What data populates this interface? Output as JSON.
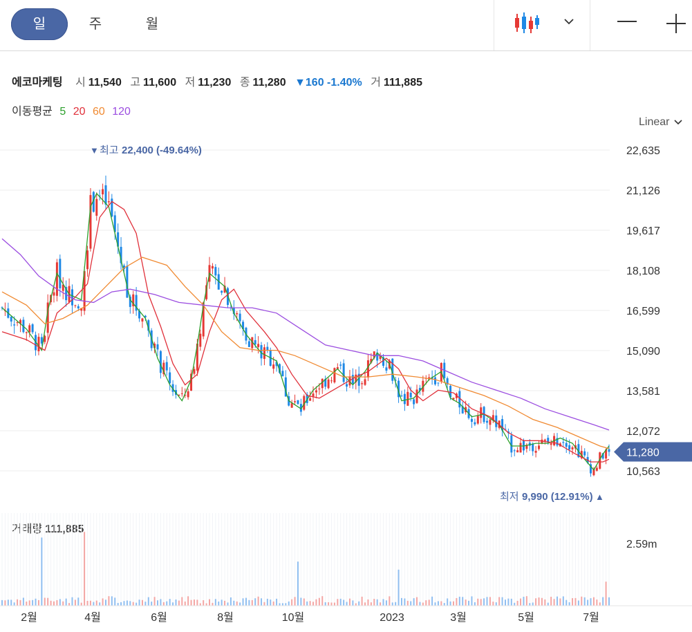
{
  "toolbar": {
    "periods": [
      "일",
      "주",
      "월"
    ],
    "active_period": "일",
    "chart_type_icon": "candlestick-icon",
    "dropdown_icon": "chevron-down-icon",
    "zoom_out_icon": "minus-icon",
    "zoom_in_icon": "plus-icon"
  },
  "quote": {
    "name": "에코마케팅",
    "open_label": "시",
    "open": "11,540",
    "high_label": "고",
    "high": "11,600",
    "low_label": "저",
    "low": "11,230",
    "close_label": "종",
    "close": "11,280",
    "change": "▼160 -1.40%",
    "volume_label": "거",
    "volume": "111,885"
  },
  "ma": {
    "label": "이동평균",
    "periods": [
      {
        "n": "5",
        "color": "#2ca02c"
      },
      {
        "n": "20",
        "color": "#e0303a"
      },
      {
        "n": "60",
        "color": "#f08a32"
      },
      {
        "n": "120",
        "color": "#9b4de0"
      }
    ]
  },
  "scale_mode": "Linear",
  "volume_panel": {
    "label": "거래량",
    "value": "111,885",
    "axis_max": "2.59m"
  },
  "colors": {
    "up": "#e53935",
    "down": "#1e88e5",
    "accent": "#4a67a5"
  },
  "chart_data": {
    "type": "candlestick",
    "x_ticks": [
      "2월",
      "4월",
      "6월",
      "8월",
      "10월",
      "2023",
      "3월",
      "5월",
      "7월"
    ],
    "y_ticks": [
      "22,635",
      "21,126",
      "19,617",
      "18,108",
      "16,599",
      "15,090",
      "13,581",
      "12,072",
      "10,563"
    ],
    "y_tick_values": [
      22635,
      21126,
      19617,
      18108,
      16599,
      15090,
      13581,
      12072,
      10563
    ],
    "current_price_label": "11,280",
    "current_price": 11280,
    "max_marker": {
      "label": "최고",
      "value": "22,400 (-49.64%)"
    },
    "min_marker": {
      "label": "최저",
      "value": "9,990 (12.91%)"
    },
    "ma_series": [
      {
        "name": "5",
        "color": "#2ca02c",
        "points": [
          [
            0,
            16700
          ],
          [
            8,
            15900
          ],
          [
            13,
            15100
          ],
          [
            15,
            16600
          ],
          [
            18,
            18000
          ],
          [
            22,
            17200
          ],
          [
            26,
            17000
          ],
          [
            29,
            20500
          ],
          [
            31,
            21000
          ],
          [
            35,
            20500
          ],
          [
            39,
            18500
          ],
          [
            42,
            17000
          ],
          [
            47,
            16300
          ],
          [
            51,
            14800
          ],
          [
            55,
            13800
          ],
          [
            59,
            13200
          ],
          [
            62,
            14000
          ],
          [
            64,
            15300
          ],
          [
            66,
            16800
          ],
          [
            68,
            18000
          ],
          [
            71,
            17700
          ],
          [
            73,
            17500
          ],
          [
            76,
            16500
          ],
          [
            80,
            15700
          ],
          [
            85,
            15000
          ],
          [
            90,
            14700
          ],
          [
            94,
            13200
          ],
          [
            98,
            12900
          ],
          [
            102,
            13600
          ],
          [
            106,
            14000
          ],
          [
            110,
            14400
          ],
          [
            115,
            13800
          ],
          [
            119,
            14300
          ],
          [
            123,
            15000
          ],
          [
            127,
            14600
          ],
          [
            131,
            13200
          ],
          [
            135,
            13300
          ],
          [
            140,
            14000
          ],
          [
            144,
            14300
          ],
          [
            147,
            13300
          ],
          [
            150,
            13100
          ],
          [
            154,
            12600
          ],
          [
            158,
            12700
          ],
          [
            163,
            12300
          ],
          [
            167,
            11500
          ],
          [
            171,
            11500
          ],
          [
            175,
            11600
          ],
          [
            179,
            11600
          ],
          [
            183,
            11800
          ],
          [
            187,
            11600
          ],
          [
            191,
            11000
          ],
          [
            194,
            10600
          ],
          [
            197,
            11200
          ],
          [
            199,
            11500
          ]
        ]
      },
      {
        "name": "20",
        "color": "#e0303a",
        "points": [
          [
            0,
            15800
          ],
          [
            8,
            15500
          ],
          [
            14,
            15100
          ],
          [
            18,
            16500
          ],
          [
            24,
            17100
          ],
          [
            28,
            17600
          ],
          [
            32,
            20100
          ],
          [
            36,
            20700
          ],
          [
            40,
            20400
          ],
          [
            44,
            19500
          ],
          [
            48,
            17200
          ],
          [
            52,
            16000
          ],
          [
            56,
            14600
          ],
          [
            60,
            13800
          ],
          [
            64,
            14200
          ],
          [
            68,
            15800
          ],
          [
            72,
            17000
          ],
          [
            76,
            17400
          ],
          [
            80,
            16600
          ],
          [
            86,
            15800
          ],
          [
            90,
            15200
          ],
          [
            95,
            14200
          ],
          [
            100,
            13400
          ],
          [
            104,
            13300
          ],
          [
            110,
            13700
          ],
          [
            116,
            14100
          ],
          [
            120,
            14300
          ],
          [
            126,
            14800
          ],
          [
            130,
            14400
          ],
          [
            134,
            13600
          ],
          [
            138,
            13200
          ],
          [
            143,
            13600
          ],
          [
            148,
            13500
          ],
          [
            154,
            12900
          ],
          [
            160,
            12600
          ],
          [
            166,
            12000
          ],
          [
            171,
            11700
          ],
          [
            176,
            11700
          ],
          [
            182,
            11600
          ],
          [
            188,
            11200
          ],
          [
            193,
            10900
          ],
          [
            197,
            10900
          ],
          [
            199,
            11000
          ]
        ]
      },
      {
        "name": "60",
        "color": "#f08a32",
        "points": [
          [
            0,
            17300
          ],
          [
            8,
            16800
          ],
          [
            14,
            16100
          ],
          [
            20,
            16300
          ],
          [
            28,
            16800
          ],
          [
            34,
            17500
          ],
          [
            40,
            18200
          ],
          [
            46,
            18600
          ],
          [
            54,
            18300
          ],
          [
            60,
            17500
          ],
          [
            66,
            16800
          ],
          [
            72,
            15800
          ],
          [
            78,
            15200
          ],
          [
            84,
            15100
          ],
          [
            90,
            15100
          ],
          [
            96,
            14900
          ],
          [
            104,
            14500
          ],
          [
            112,
            14100
          ],
          [
            120,
            14100
          ],
          [
            128,
            14200
          ],
          [
            136,
            14100
          ],
          [
            142,
            14000
          ],
          [
            150,
            13700
          ],
          [
            158,
            13400
          ],
          [
            166,
            13000
          ],
          [
            174,
            12500
          ],
          [
            182,
            12200
          ],
          [
            190,
            11800
          ],
          [
            196,
            11500
          ],
          [
            199,
            11400
          ]
        ]
      },
      {
        "name": "120",
        "color": "#9b4de0",
        "points": [
          [
            0,
            19300
          ],
          [
            6,
            18700
          ],
          [
            12,
            17900
          ],
          [
            18,
            17400
          ],
          [
            24,
            17000
          ],
          [
            30,
            16900
          ],
          [
            36,
            17300
          ],
          [
            42,
            17400
          ],
          [
            50,
            17200
          ],
          [
            58,
            16900
          ],
          [
            66,
            16800
          ],
          [
            74,
            16700
          ],
          [
            82,
            16700
          ],
          [
            90,
            16500
          ],
          [
            98,
            15900
          ],
          [
            106,
            15300
          ],
          [
            114,
            15100
          ],
          [
            122,
            14900
          ],
          [
            130,
            14900
          ],
          [
            138,
            14700
          ],
          [
            146,
            14300
          ],
          [
            154,
            13900
          ],
          [
            162,
            13600
          ],
          [
            170,
            13300
          ],
          [
            178,
            12900
          ],
          [
            186,
            12600
          ],
          [
            194,
            12300
          ],
          [
            199,
            12100
          ]
        ]
      }
    ]
  }
}
